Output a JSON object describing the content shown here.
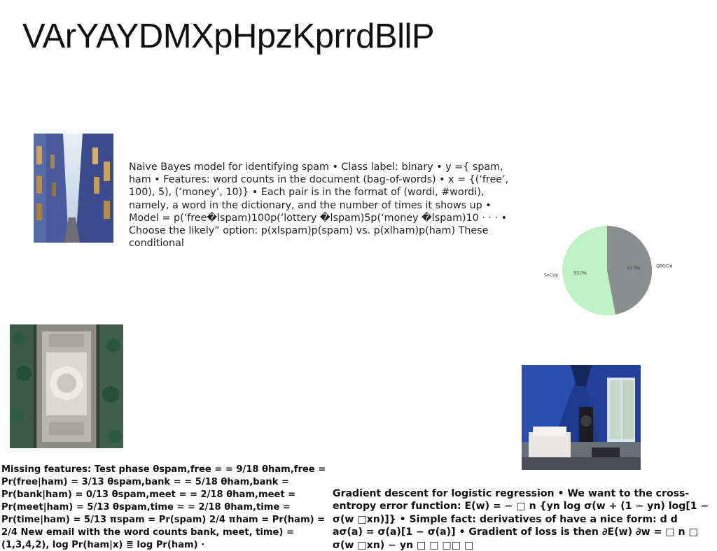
{
  "slide": {
    "title": "VArYAYDMXpHpzKprrdBllP"
  },
  "images": {
    "alley": "narrow-alley-photo",
    "aerial": "aerial-courtyard-photo",
    "cabin": "cabin-interior-photo"
  },
  "text": {
    "naive_bayes": "Naive Bayes model for identifying spam • Class label: binary • y ={ spam, ham • Features: word counts in the document (bag-of-words) • x = {(‘free’, 100), 5), (‘money’, 10)} • Each pair is in the format of (wordi, #wordi), namely, a word in the dictionary, and the number of times it shows up • Model = p(‘free�lspam)100p(‘lottery �lspam)5p(‘money �lspam)10 · · · • Choose the likely” option: p(xlspam)p(spam) vs. p(xlham)p(ham) These conditional",
    "missing_features": "Missing features: Test phase θspam,free = = 9/18 θham,free = Pr(free|ham) = 3/13 θspam,bank = = 5/18 θham,bank = Pr(bank|ham) = 0/13 θspam,meet = = 2/18 θham,meet = Pr(meet|ham) = 5/13 θspam,time = = 2/18 θham,time = Pr(time|ham) = 5/13 πspam = Pr(spam) 2/4 πham = Pr(ham) = 2/4 New email with the word counts bank, meet, time) = (1,3,4,2), log Pr(ham|x) ≣ log Pr(ham) ·",
    "gradient_descent": "Gradient descent for logistic regression • We want to the cross-entropy error function: E(w) = − □ n {yn log σ(w + (1 − yn) log[1 − σ(w □xn)]} • Simple fact: derivatives of have a nice form: d d aσ(a) = σ(a)[1 − σ(a)] • Gradient of loss is then ∂E(w) ∂w = □ n □ σ(w □xn) − yn □ □ □□ □"
  },
  "chart_data": {
    "type": "pie",
    "title": "",
    "categories": [
      "SnCVp",
      "QROCId"
    ],
    "values": [
      53.0,
      47.0
    ],
    "value_labels": [
      "53.0%",
      "47.0%"
    ],
    "colors": [
      "#bff2c4",
      "#8a8e8e"
    ],
    "start_angle_deg": 90,
    "direction": "counterclockwise"
  }
}
